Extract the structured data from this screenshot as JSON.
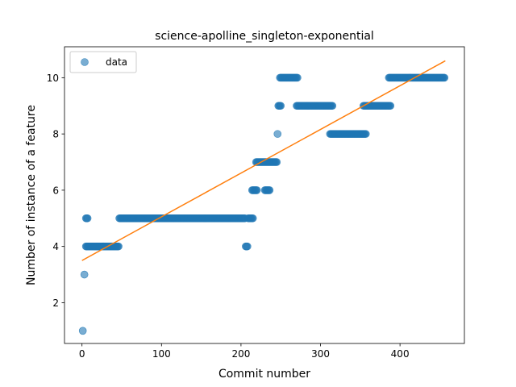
{
  "chart_data": {
    "type": "scatter",
    "title": "science-apolline_singleton-exponential",
    "xlabel": "Commit number",
    "ylabel": "Number of instance of a feature",
    "xlim": [
      -22,
      481
    ],
    "ylim": [
      0.55,
      11.1
    ],
    "xticks": [
      0,
      100,
      200,
      300,
      400
    ],
    "yticks": [
      2,
      4,
      6,
      8,
      10
    ],
    "legend": {
      "placement": "upper-left",
      "entries": [
        "data"
      ]
    },
    "grid": false,
    "colors": {
      "points": "#1f77b4",
      "fit": "#ff7f0e"
    },
    "series": [
      {
        "name": "data",
        "kind": "scatter",
        "segments": [
          {
            "x_start": 1,
            "x_end": 1,
            "y": 1
          },
          {
            "x_start": 3,
            "x_end": 3,
            "y": 3
          },
          {
            "x_start": 5,
            "x_end": 7,
            "y": 5
          },
          {
            "x_start": 5,
            "x_end": 46,
            "y": 4
          },
          {
            "x_start": 47,
            "x_end": 205,
            "y": 5
          },
          {
            "x_start": 206,
            "x_end": 208,
            "y": 4
          },
          {
            "x_start": 209,
            "x_end": 215,
            "y": 5
          },
          {
            "x_start": 214,
            "x_end": 220,
            "y": 6
          },
          {
            "x_start": 219,
            "x_end": 245,
            "y": 7
          },
          {
            "x_start": 230,
            "x_end": 236,
            "y": 6
          },
          {
            "x_start": 246,
            "x_end": 246,
            "y": 8
          },
          {
            "x_start": 247,
            "x_end": 250,
            "y": 9
          },
          {
            "x_start": 249,
            "x_end": 271,
            "y": 10
          },
          {
            "x_start": 270,
            "x_end": 315,
            "y": 9
          },
          {
            "x_start": 312,
            "x_end": 357,
            "y": 8
          },
          {
            "x_start": 354,
            "x_end": 388,
            "y": 9
          },
          {
            "x_start": 386,
            "x_end": 456,
            "y": 10
          }
        ]
      },
      {
        "name": "fit",
        "kind": "line",
        "x": [
          0,
          457
        ],
        "y": [
          3.5,
          10.6
        ]
      }
    ]
  }
}
